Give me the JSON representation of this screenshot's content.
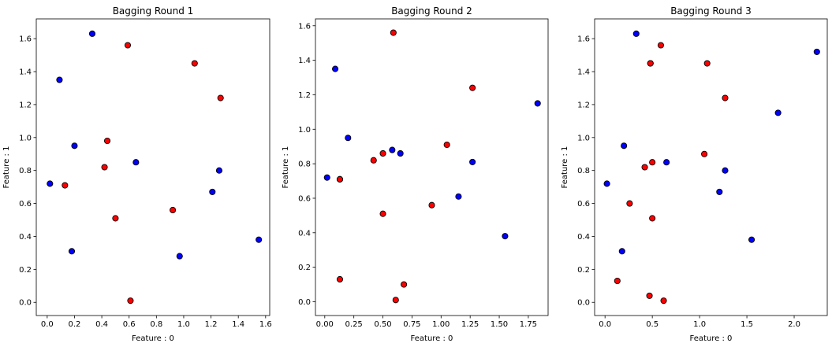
{
  "chart_data": [
    {
      "type": "scatter",
      "title": "Bagging Round 1",
      "xlabel": "Feature : 0",
      "ylabel": "Feature : 1",
      "xlim": [
        -0.08,
        1.63
      ],
      "ylim": [
        -0.08,
        1.72
      ],
      "xticks": [
        0.0,
        0.2,
        0.4,
        0.6,
        0.8,
        1.0,
        1.2,
        1.4,
        1.6
      ],
      "xtick_labels": [
        "0.0",
        "0.2",
        "0.4",
        "0.6",
        "0.8",
        "1.0",
        "1.2",
        "1.4",
        "1.6"
      ],
      "yticks": [
        0.0,
        0.2,
        0.4,
        0.6,
        0.8,
        1.0,
        1.2,
        1.4,
        1.6
      ],
      "ytick_labels": [
        "0.0",
        "0.2",
        "0.4",
        "0.6",
        "0.8",
        "1.0",
        "1.2",
        "1.4",
        "1.6"
      ],
      "series": [
        {
          "color": "#0000ff",
          "points": [
            [
              0.33,
              1.63
            ],
            [
              0.09,
              1.35
            ],
            [
              0.2,
              0.95
            ],
            [
              0.65,
              0.85
            ],
            [
              1.26,
              0.8
            ],
            [
              0.02,
              0.72
            ],
            [
              1.21,
              0.67
            ],
            [
              1.55,
              0.38
            ],
            [
              0.18,
              0.31
            ],
            [
              0.97,
              0.28
            ]
          ]
        },
        {
          "color": "#ff0000",
          "points": [
            [
              0.59,
              1.56
            ],
            [
              1.08,
              1.45
            ],
            [
              1.27,
              1.24
            ],
            [
              0.44,
              0.98
            ],
            [
              0.42,
              0.82
            ],
            [
              0.13,
              0.71
            ],
            [
              0.92,
              0.56
            ],
            [
              0.5,
              0.51
            ],
            [
              0.61,
              0.01
            ]
          ]
        }
      ]
    },
    {
      "type": "scatter",
      "title": "Bagging Round 2",
      "xlabel": "Feature : 0",
      "ylabel": "Feature : 1",
      "xlim": [
        -0.08,
        1.92
      ],
      "ylim": [
        -0.08,
        1.64
      ],
      "xticks": [
        0.0,
        0.25,
        0.5,
        0.75,
        1.0,
        1.25,
        1.5,
        1.75
      ],
      "xtick_labels": [
        "0.00",
        "0.25",
        "0.50",
        "0.75",
        "1.00",
        "1.25",
        "1.50",
        "1.75"
      ],
      "yticks": [
        0.0,
        0.2,
        0.4,
        0.6,
        0.8,
        1.0,
        1.2,
        1.4,
        1.6
      ],
      "ytick_labels": [
        "0.0",
        "0.2",
        "0.4",
        "0.6",
        "0.8",
        "1.0",
        "1.2",
        "1.4",
        "1.6"
      ],
      "series": [
        {
          "color": "#0000ff",
          "points": [
            [
              0.09,
              1.35
            ],
            [
              1.83,
              1.15
            ],
            [
              0.2,
              0.95
            ],
            [
              0.58,
              0.88
            ],
            [
              0.65,
              0.86
            ],
            [
              1.27,
              0.81
            ],
            [
              0.02,
              0.72
            ],
            [
              0.13,
              0.71
            ],
            [
              1.15,
              0.61
            ],
            [
              1.55,
              0.38
            ]
          ]
        },
        {
          "color": "#ff0000",
          "points": [
            [
              0.59,
              1.56
            ],
            [
              1.27,
              1.24
            ],
            [
              1.05,
              0.91
            ],
            [
              0.5,
              0.86
            ],
            [
              0.42,
              0.82
            ],
            [
              0.13,
              0.71
            ],
            [
              0.92,
              0.56
            ],
            [
              0.5,
              0.51
            ],
            [
              0.13,
              0.13
            ],
            [
              0.68,
              0.1
            ],
            [
              0.61,
              0.01
            ]
          ]
        }
      ]
    },
    {
      "type": "scatter",
      "title": "Bagging Round 3",
      "xlabel": "Feature : 0",
      "ylabel": "Feature : 1",
      "xlim": [
        -0.11,
        2.35
      ],
      "ylim": [
        -0.08,
        1.72
      ],
      "xticks": [
        0.0,
        0.5,
        1.0,
        1.5,
        2.0
      ],
      "xtick_labels": [
        "0.0",
        "0.5",
        "1.0",
        "1.5",
        "2.0"
      ],
      "yticks": [
        0.0,
        0.2,
        0.4,
        0.6,
        0.8,
        1.0,
        1.2,
        1.4,
        1.6
      ],
      "ytick_labels": [
        "0.0",
        "0.2",
        "0.4",
        "0.6",
        "0.8",
        "1.0",
        "1.2",
        "1.4",
        "1.6"
      ],
      "series": [
        {
          "color": "#0000ff",
          "points": [
            [
              0.33,
              1.63
            ],
            [
              2.24,
              1.52
            ],
            [
              0.48,
              1.45
            ],
            [
              1.83,
              1.15
            ],
            [
              0.2,
              0.95
            ],
            [
              0.65,
              0.85
            ],
            [
              1.27,
              0.8
            ],
            [
              0.02,
              0.72
            ],
            [
              1.21,
              0.67
            ],
            [
              1.55,
              0.38
            ],
            [
              0.18,
              0.31
            ]
          ]
        },
        {
          "color": "#ff0000",
          "points": [
            [
              0.59,
              1.56
            ],
            [
              0.48,
              1.45
            ],
            [
              1.08,
              1.45
            ],
            [
              1.27,
              1.24
            ],
            [
              1.05,
              0.9
            ],
            [
              0.5,
              0.85
            ],
            [
              0.42,
              0.82
            ],
            [
              0.26,
              0.6
            ],
            [
              0.5,
              0.51
            ],
            [
              0.13,
              0.13
            ],
            [
              0.47,
              0.04
            ],
            [
              0.62,
              0.01
            ]
          ]
        }
      ]
    }
  ]
}
